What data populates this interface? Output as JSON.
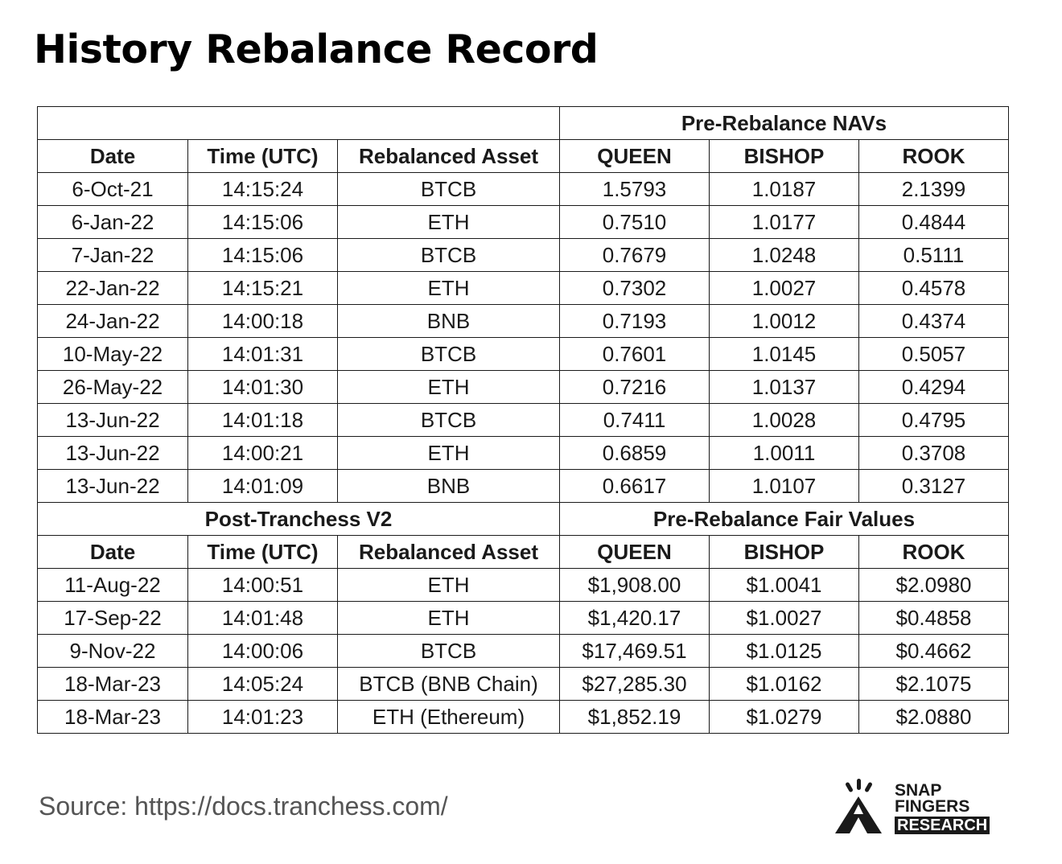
{
  "title": "History Rebalance Record",
  "table": {
    "section1": {
      "group_header": "Pre-Rebalance NAVs",
      "columns": [
        "Date",
        "Time (UTC)",
        "Rebalanced Asset",
        "QUEEN",
        "BISHOP",
        "ROOK"
      ],
      "rows": [
        [
          "6-Oct-21",
          "14:15:24",
          "BTCB",
          "1.5793",
          "1.0187",
          "2.1399"
        ],
        [
          "6-Jan-22",
          "14:15:06",
          "ETH",
          "0.7510",
          "1.0177",
          "0.4844"
        ],
        [
          "7-Jan-22",
          "14:15:06",
          "BTCB",
          "0.7679",
          "1.0248",
          "0.5111"
        ],
        [
          "22-Jan-22",
          "14:15:21",
          "ETH",
          "0.7302",
          "1.0027",
          "0.4578"
        ],
        [
          "24-Jan-22",
          "14:00:18",
          "BNB",
          "0.7193",
          "1.0012",
          "0.4374"
        ],
        [
          "10-May-22",
          "14:01:31",
          "BTCB",
          "0.7601",
          "1.0145",
          "0.5057"
        ],
        [
          "26-May-22",
          "14:01:30",
          "ETH",
          "0.7216",
          "1.0137",
          "0.4294"
        ],
        [
          "13-Jun-22",
          "14:01:18",
          "BTCB",
          "0.7411",
          "1.0028",
          "0.4795"
        ],
        [
          "13-Jun-22",
          "14:00:21",
          "ETH",
          "0.6859",
          "1.0011",
          "0.3708"
        ],
        [
          "13-Jun-22",
          "14:01:09",
          "BNB",
          "0.6617",
          "1.0107",
          "0.3127"
        ]
      ]
    },
    "section2": {
      "left_header": "Post-Tranchess V2",
      "group_header": "Pre-Rebalance Fair Values",
      "columns": [
        "Date",
        "Time (UTC)",
        "Rebalanced Asset",
        "QUEEN",
        "BISHOP",
        "ROOK"
      ],
      "rows": [
        [
          "11-Aug-22",
          "14:00:51",
          "ETH",
          "$1,908.00",
          "$1.0041",
          "$2.0980"
        ],
        [
          "17-Sep-22",
          "14:01:48",
          "ETH",
          "$1,420.17",
          "$1.0027",
          "$0.4858"
        ],
        [
          "9-Nov-22",
          "14:00:06",
          "BTCB",
          "$17,469.51",
          "$1.0125",
          "$0.4662"
        ],
        [
          "18-Mar-23",
          "14:05:24",
          "BTCB (BNB Chain)",
          "$27,285.30",
          "$1.0162",
          "$2.1075"
        ],
        [
          "18-Mar-23",
          "14:01:23",
          "ETH (Ethereum)",
          "$1,852.19",
          "$1.0279",
          "$2.0880"
        ]
      ]
    }
  },
  "source": "Source: https://docs.tranchess.com/",
  "logo": {
    "line1": "SNAP",
    "line2": "FINGERS",
    "line3": "RESEARCH",
    "icon": "snap-fingers-logo-icon"
  }
}
